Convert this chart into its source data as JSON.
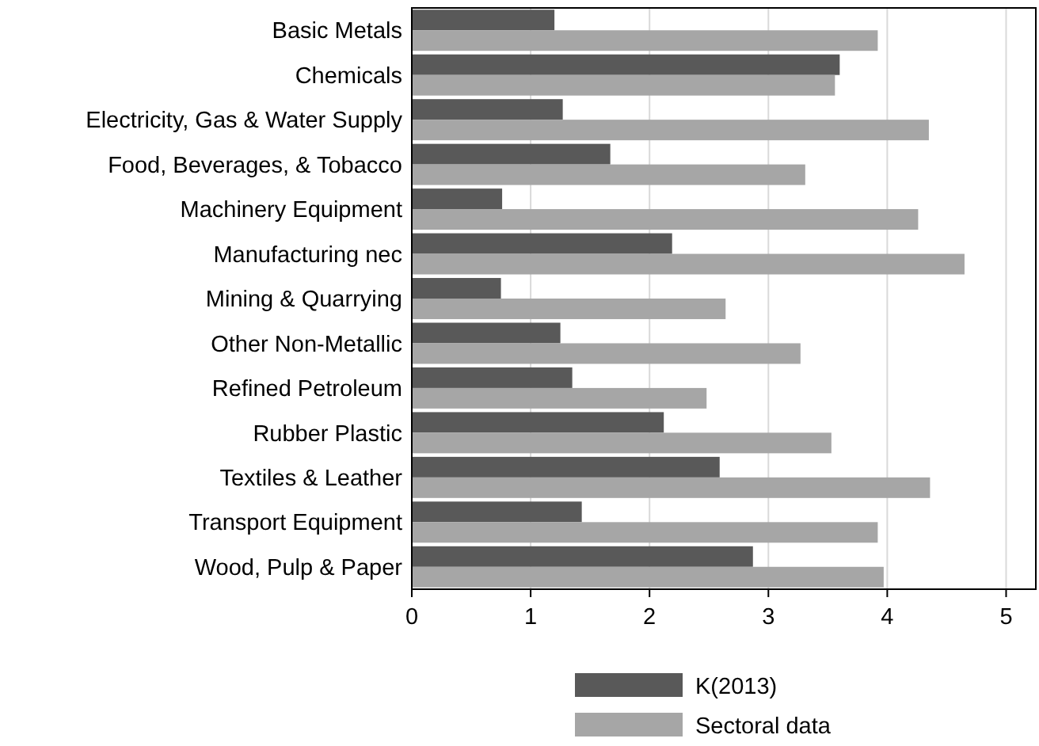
{
  "chart_data": {
    "type": "bar",
    "orientation": "horizontal",
    "categories": [
      "Basic Metals",
      "Chemicals",
      "Electricity, Gas & Water Supply",
      "Food, Beverages, & Tobacco",
      "Machinery Equipment",
      "Manufacturing nec",
      "Mining & Quarrying",
      "Other Non-Metallic",
      "Refined Petroleum",
      "Rubber Plastic",
      "Textiles & Leather",
      "Transport Equipment",
      "Wood, Pulp & Paper"
    ],
    "series": [
      {
        "name": "K(2013)",
        "color": "#595959",
        "values": [
          1.2,
          3.6,
          1.27,
          1.67,
          0.76,
          2.19,
          0.75,
          1.25,
          1.35,
          2.12,
          2.59,
          1.43,
          2.87
        ]
      },
      {
        "name": "Sectoral data",
        "color": "#a6a6a6",
        "values": [
          3.92,
          3.56,
          4.35,
          3.31,
          4.26,
          4.65,
          2.64,
          3.27,
          2.48,
          3.53,
          4.36,
          3.92,
          3.97
        ]
      }
    ],
    "xlim": [
      0,
      5.25
    ],
    "xticks": [
      0,
      1,
      2,
      3,
      4,
      5
    ],
    "grid": "x",
    "legend": "bottom"
  }
}
